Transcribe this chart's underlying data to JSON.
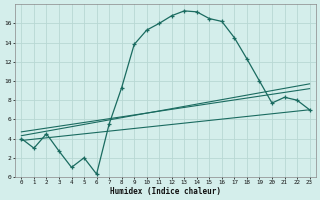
{
  "xlabel": "Humidex (Indice chaleur)",
  "bg_color": "#d4eeeb",
  "grid_color": "#b8d8d4",
  "line_color": "#1a6b60",
  "xlim": [
    -0.5,
    23.5
  ],
  "ylim": [
    0,
    18
  ],
  "xticks": [
    0,
    1,
    2,
    3,
    4,
    5,
    6,
    7,
    8,
    9,
    10,
    11,
    12,
    13,
    14,
    15,
    16,
    17,
    18,
    19,
    20,
    21,
    22,
    23
  ],
  "yticks": [
    0,
    2,
    4,
    6,
    8,
    10,
    12,
    14,
    16
  ],
  "main_x": [
    0,
    1,
    2,
    3,
    4,
    5,
    6,
    7,
    8,
    9,
    10,
    11,
    12,
    13,
    14,
    15,
    16,
    17,
    18,
    19,
    20,
    21,
    22,
    23
  ],
  "main_y": [
    4.0,
    3.0,
    4.5,
    2.7,
    1.0,
    2.0,
    0.3,
    5.5,
    9.3,
    13.8,
    15.3,
    16.0,
    16.8,
    17.3,
    17.2,
    16.5,
    16.2,
    14.5,
    12.3,
    10.0,
    7.7,
    8.3,
    8.0,
    7.0
  ],
  "line1_x": [
    0,
    23
  ],
  "line1_y": [
    4.3,
    9.7
  ],
  "line2_x": [
    0,
    23
  ],
  "line2_y": [
    4.7,
    9.2
  ],
  "line3_x": [
    0,
    23
  ],
  "line3_y": [
    3.8,
    7.0
  ]
}
